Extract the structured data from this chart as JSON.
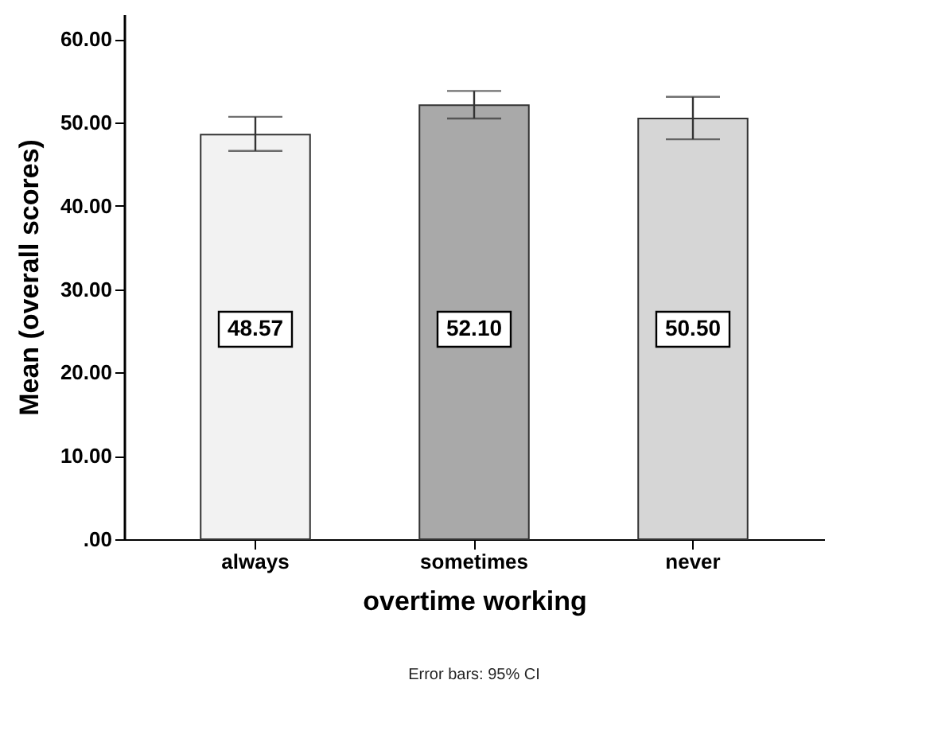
{
  "chart_data": {
    "type": "bar",
    "xlabel": "overtime working",
    "ylabel": "Mean (overall scores)",
    "categories": [
      "always",
      "sometimes",
      "never"
    ],
    "values": [
      48.57,
      52.1,
      50.5
    ],
    "colors": [
      "#f2f2f2",
      "#a9a9a9",
      "#d6d6d6"
    ],
    "errors": [
      [
        46.6,
        50.7
      ],
      [
        50.5,
        53.8
      ],
      [
        48.0,
        53.1
      ]
    ],
    "value_labels": [
      "48.57",
      "52.10",
      "50.50"
    ],
    "ylim": [
      0,
      63
    ],
    "yticks": [
      {
        "value": 0,
        "label": ".00"
      },
      {
        "value": 10,
        "label": "10.00"
      },
      {
        "value": 20,
        "label": "20.00"
      },
      {
        "value": 30,
        "label": "30.00"
      },
      {
        "value": 40,
        "label": "40.00"
      },
      {
        "value": 50,
        "label": "50.00"
      },
      {
        "value": 60,
        "label": "60.00"
      }
    ],
    "grid": false,
    "annotations": [
      "Error bars: 95% CI"
    ]
  }
}
